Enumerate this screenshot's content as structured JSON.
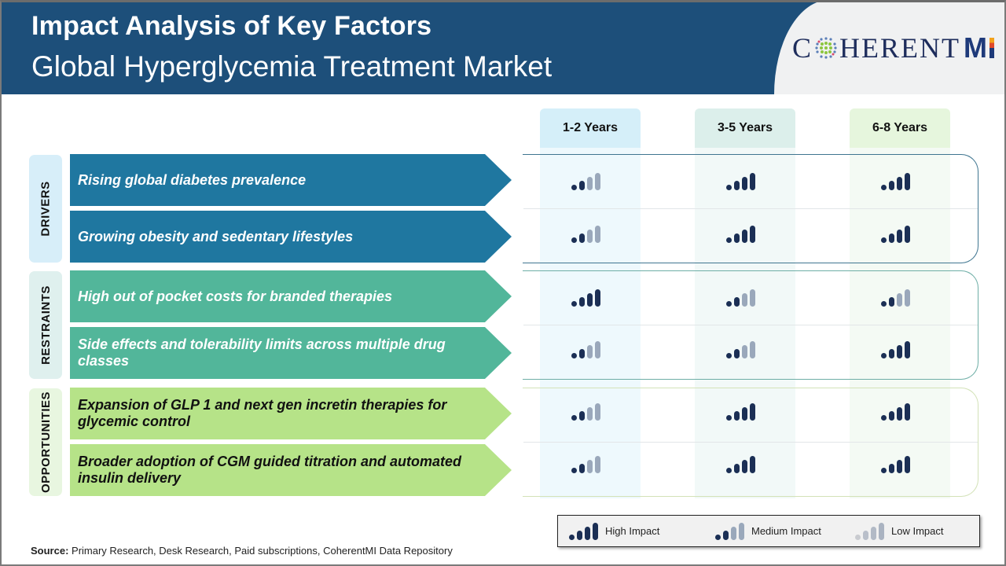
{
  "header": {
    "title": "Impact Analysis of Key Factors",
    "subtitle": "Global Hyperglycemia Treatment Market",
    "logo_text_left": "C",
    "logo_text_mid": "HERENT",
    "logo_text_right": "M",
    "logo_alt": "CoherentMI"
  },
  "columns": [
    "1-2 Years",
    "3-5 Years",
    "6-8 Years"
  ],
  "colors": {
    "header_bg": "#1d4f7a",
    "drivers": "#1f77a0",
    "restraints": "#52b69a",
    "opportunities": "#b6e388",
    "high_bar": "#1b2f55",
    "medium_bar": "#9aa8bb",
    "low_bar": "#c3c6cc"
  },
  "groups": [
    {
      "label": "DRIVERS",
      "factors": [
        {
          "text": "Rising global diabetes prevalence",
          "impacts": [
            "medium",
            "high",
            "high"
          ]
        },
        {
          "text": "Growing obesity and sedentary lifestyles",
          "impacts": [
            "medium",
            "high",
            "high"
          ]
        }
      ]
    },
    {
      "label": "RESTRAINTS",
      "factors": [
        {
          "text": "High out of pocket costs for branded therapies",
          "impacts": [
            "high",
            "medium",
            "medium"
          ]
        },
        {
          "text": "Side effects and tolerability limits across multiple drug classes",
          "impacts": [
            "medium",
            "medium",
            "high"
          ]
        }
      ]
    },
    {
      "label": "OPPORTUNITIES",
      "factors": [
        {
          "text": "Expansion of GLP 1 and next gen incretin therapies for glycemic control",
          "impacts": [
            "medium",
            "high",
            "high"
          ]
        },
        {
          "text": "Broader adoption of CGM guided titration and automated insulin delivery",
          "impacts": [
            "medium",
            "high",
            "high"
          ]
        }
      ]
    }
  ],
  "legend": {
    "high": "High Impact",
    "medium": "Medium Impact",
    "low": "Low Impact"
  },
  "source": {
    "label": "Source:",
    "text": " Primary Research, Desk Research, Paid subscriptions, CoherentMI Data Repository"
  },
  "chart_data": {
    "type": "table",
    "title": "Impact Analysis of Key Factors",
    "subtitle": "Global Hyperglycemia Treatment Market",
    "columns": [
      "1-2 Years",
      "3-5 Years",
      "6-8 Years"
    ],
    "scale": {
      "high": 3,
      "medium": 2,
      "low": 1
    },
    "legend": [
      "High Impact",
      "Medium Impact",
      "Low Impact"
    ],
    "rows": [
      {
        "category": "Drivers",
        "factor": "Rising global diabetes prevalence",
        "values": [
          "Medium",
          "High",
          "High"
        ]
      },
      {
        "category": "Drivers",
        "factor": "Growing obesity and sedentary lifestyles",
        "values": [
          "Medium",
          "High",
          "High"
        ]
      },
      {
        "category": "Restraints",
        "factor": "High out of pocket costs for branded therapies",
        "values": [
          "High",
          "Medium",
          "Medium"
        ]
      },
      {
        "category": "Restraints",
        "factor": "Side effects and tolerability limits across multiple drug classes",
        "values": [
          "Medium",
          "Medium",
          "High"
        ]
      },
      {
        "category": "Opportunities",
        "factor": "Expansion of GLP 1 and next gen incretin therapies for glycemic control",
        "values": [
          "Medium",
          "High",
          "High"
        ]
      },
      {
        "category": "Opportunities",
        "factor": "Broader adoption of CGM guided titration and automated insulin delivery",
        "values": [
          "Medium",
          "High",
          "High"
        ]
      }
    ]
  }
}
